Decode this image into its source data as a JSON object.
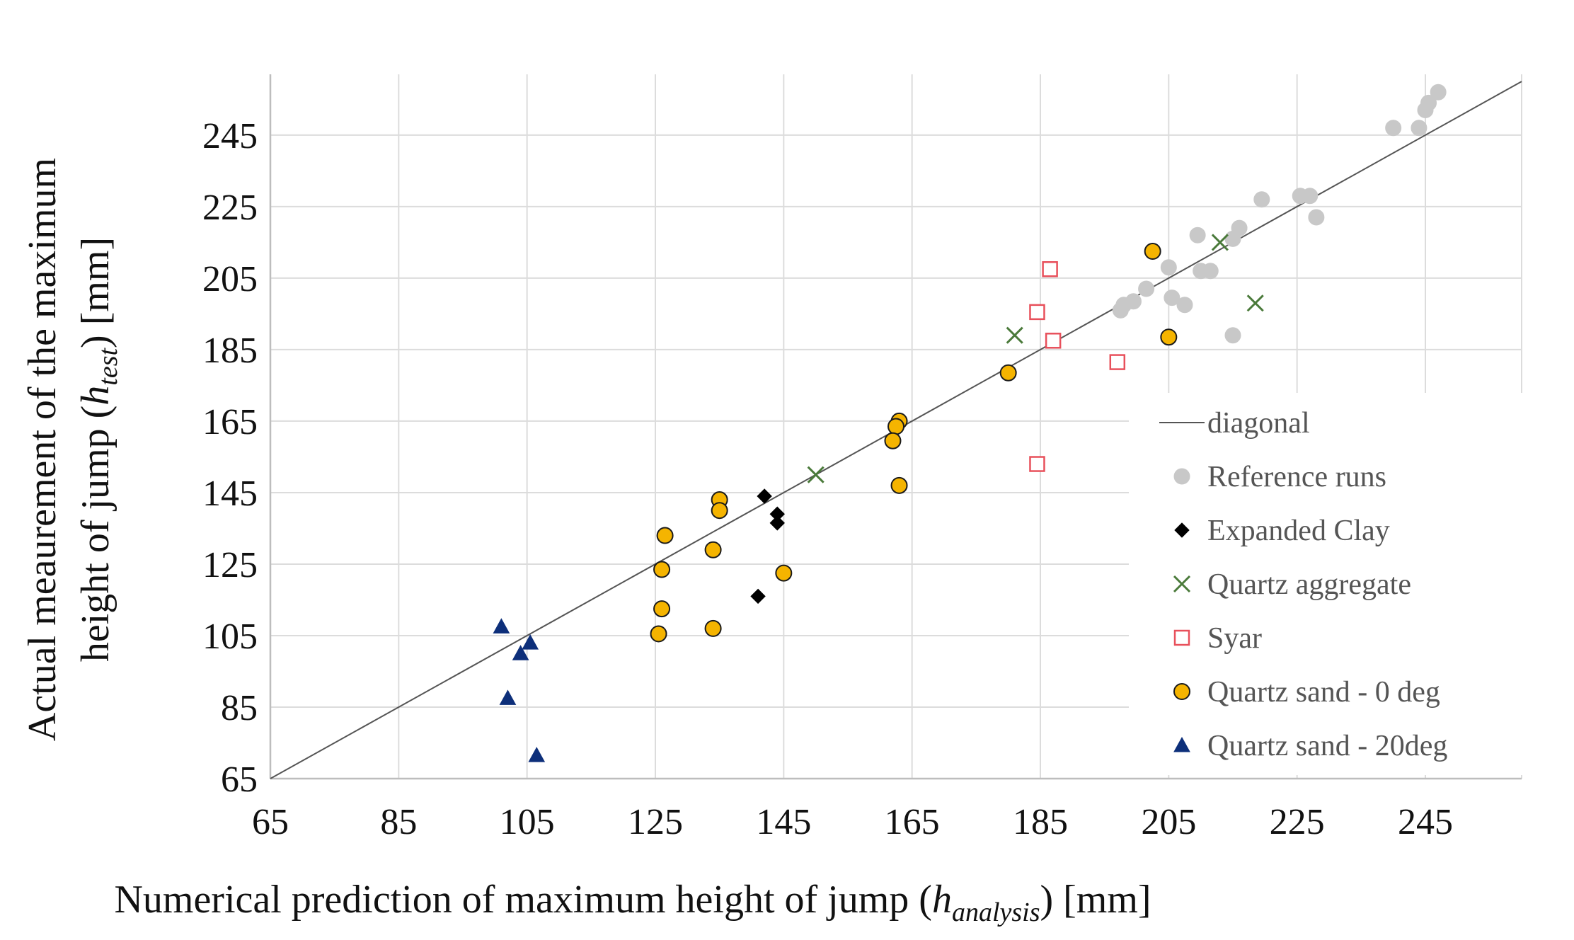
{
  "chart_data": {
    "type": "scatter",
    "title": "",
    "xlabel": {
      "prefix": "Numerical prediction of maximum height of jump (",
      "var": "h",
      "sub": "analysis",
      "suffix": ") [mm]"
    },
    "ylabel": {
      "line1": "Actual meaurement of the maximum",
      "line2_prefix": "height of jump (",
      "var": "h",
      "sub": "test",
      "line2_suffix": ") [mm]"
    },
    "xlim": [
      65,
      260
    ],
    "ylim": [
      65,
      262
    ],
    "xticks": [
      65,
      85,
      105,
      125,
      145,
      165,
      185,
      205,
      225,
      245
    ],
    "yticks": [
      65,
      85,
      105,
      125,
      145,
      165,
      185,
      205,
      225,
      245
    ],
    "grid": true,
    "legend_position": "bottom-right",
    "diagonal": {
      "name": "diagonal",
      "from": [
        65,
        65
      ],
      "to": [
        260,
        260
      ],
      "color": "#555555"
    },
    "series": [
      {
        "name": "Reference runs",
        "marker": "circle",
        "color": "#c8c8c8",
        "stroke": "#c8c8c8",
        "points": [
          [
            244,
            247
          ],
          [
            245,
            252
          ],
          [
            245.5,
            254
          ],
          [
            247,
            257
          ],
          [
            240,
            247
          ],
          [
            225.5,
            228
          ],
          [
            227,
            228
          ],
          [
            228,
            222
          ],
          [
            219.5,
            227
          ],
          [
            216,
            219
          ],
          [
            215,
            216
          ],
          [
            209.5,
            217
          ],
          [
            207.5,
            197.5
          ],
          [
            210,
            207
          ],
          [
            205,
            208
          ],
          [
            211.5,
            207
          ],
          [
            205.5,
            199.5
          ],
          [
            201.5,
            202
          ],
          [
            199.5,
            198.5
          ],
          [
            197.5,
            196
          ],
          [
            198,
            197.5
          ],
          [
            215,
            189
          ]
        ]
      },
      {
        "name": "Expanded Clay",
        "marker": "diamond",
        "color": "#000000",
        "stroke": "#000000",
        "points": [
          [
            142,
            144
          ],
          [
            144,
            139
          ],
          [
            144,
            136.5
          ],
          [
            141,
            116
          ]
        ]
      },
      {
        "name": "Quartz aggregate",
        "marker": "x",
        "color": "#4a7a3a",
        "stroke": "#4a7a3a",
        "points": [
          [
            150,
            150
          ],
          [
            181,
            189
          ],
          [
            213,
            215
          ],
          [
            218.5,
            198
          ]
        ]
      },
      {
        "name": "Syar",
        "marker": "square",
        "color": "#ffffff",
        "stroke": "#e8505b",
        "points": [
          [
            186.5,
            207.5
          ],
          [
            184.5,
            195.5
          ],
          [
            187,
            187.5
          ],
          [
            197,
            181.5
          ],
          [
            184.5,
            153
          ]
        ]
      },
      {
        "name": "Quartz sand - 0 deg",
        "marker": "circle",
        "color": "#f5b400",
        "stroke": "#1a1a1a",
        "points": [
          [
            202.5,
            212.5
          ],
          [
            205,
            188.5
          ],
          [
            180,
            178.5
          ],
          [
            163,
            165
          ],
          [
            162.5,
            163.5
          ],
          [
            162,
            159.5
          ],
          [
            163,
            147
          ],
          [
            135,
            143
          ],
          [
            135,
            140
          ],
          [
            126.5,
            133
          ],
          [
            134,
            129
          ],
          [
            126,
            123.5
          ],
          [
            145,
            122.5
          ],
          [
            126,
            112.5
          ],
          [
            125.5,
            105.5
          ],
          [
            134,
            107
          ]
        ]
      },
      {
        "name": "Quartz sand - 20deg",
        "marker": "triangle",
        "color": "#0d2f7a",
        "stroke": "#0d2f7a",
        "points": [
          [
            101,
            107.5
          ],
          [
            105.5,
            103
          ],
          [
            104,
            100
          ],
          [
            102,
            87.5
          ],
          [
            106.5,
            71.5
          ]
        ]
      }
    ]
  }
}
